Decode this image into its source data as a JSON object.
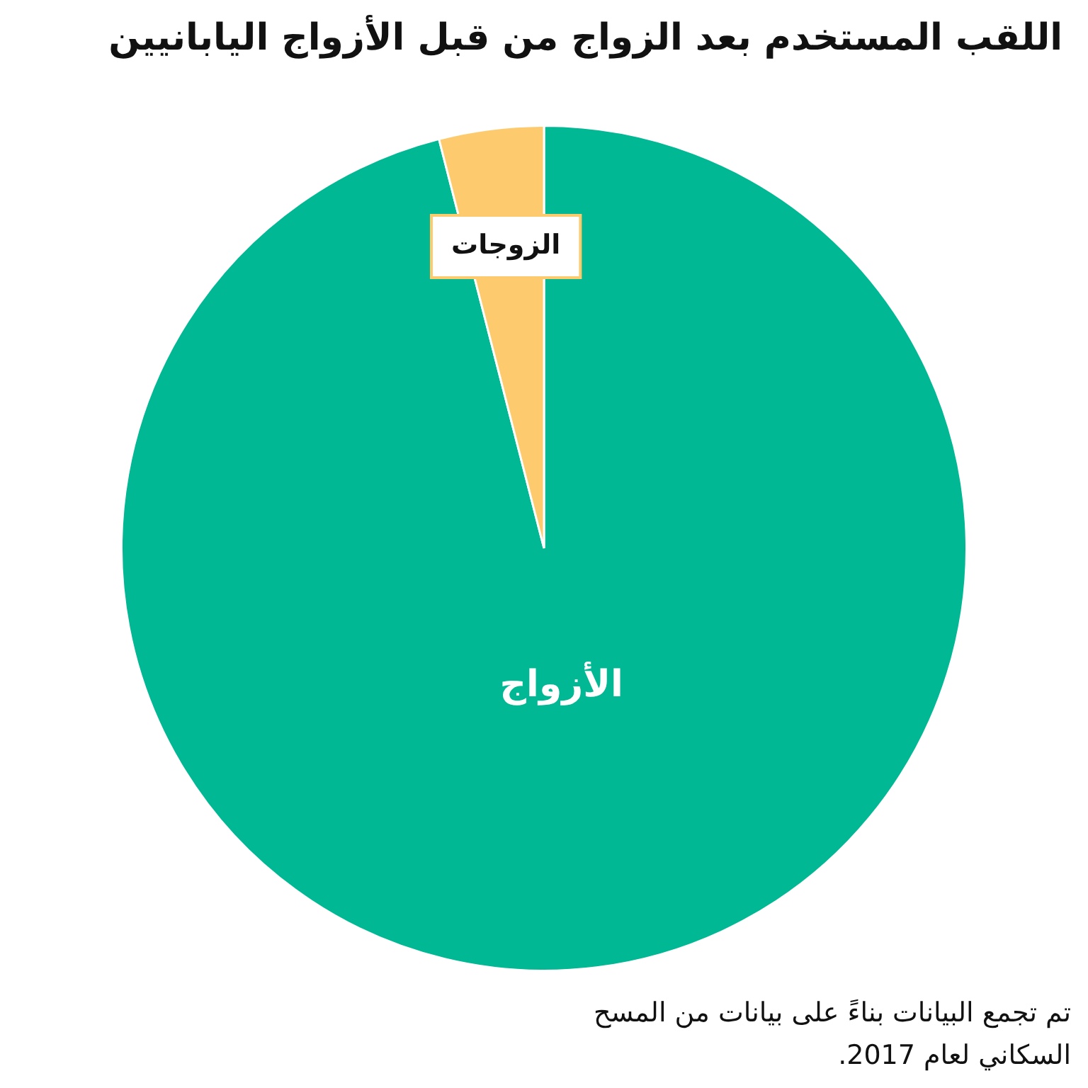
{
  "chart_data": {
    "type": "pie",
    "title": "اللقب المستخدم بعد الزواج من قبل الأزواج اليابانيين",
    "categories": [
      "الأزواج",
      "الزوجات"
    ],
    "values": [
      96,
      4
    ],
    "colors": [
      "#00b894",
      "#fdcb6e"
    ],
    "legend": false,
    "annotations": [
      "تم تجمع البيانات بناءً على بيانات من المسح السكاني لعام 2017."
    ]
  }
}
